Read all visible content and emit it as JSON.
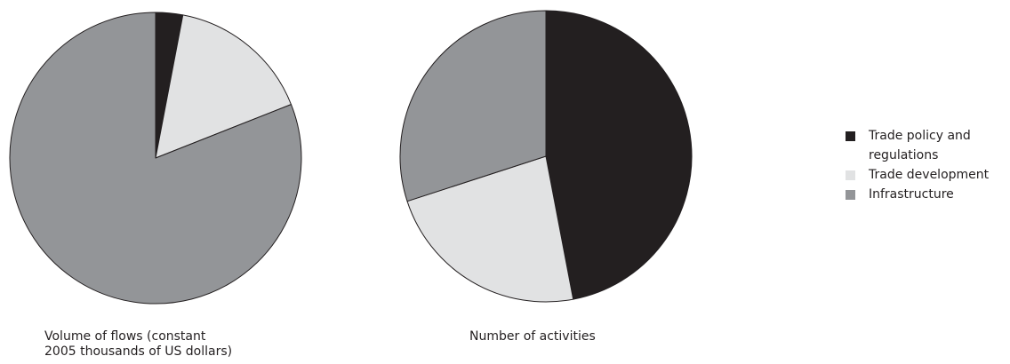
{
  "chart_data": [
    {
      "type": "pie",
      "title": "Volume of flows (constant 2005 thousands of US dollars)",
      "title_lines": [
        "Volume of flows (constant",
        "2005 thousands of US dollars)"
      ],
      "slices": [
        {
          "name": "Trade policy and regulations",
          "value": 3
        },
        {
          "name": "Trade development",
          "value": 16
        },
        {
          "name": "Infrastructure",
          "value": 81
        }
      ]
    },
    {
      "type": "pie",
      "title": "Number of activities",
      "slices": [
        {
          "name": "Trade policy and regulations",
          "value": 47
        },
        {
          "name": "Trade development",
          "value": 23
        },
        {
          "name": "Infrastructure",
          "value": 30
        }
      ]
    }
  ],
  "legend": {
    "placement": "right",
    "items": [
      {
        "label_lines": [
          "Trade policy and",
          "regulations"
        ],
        "color": "#231f20"
      },
      {
        "label_lines": [
          "Trade development"
        ],
        "color": "#e1e2e3"
      },
      {
        "label_lines": [
          "Infrastructure"
        ],
        "color": "#939598"
      }
    ]
  }
}
